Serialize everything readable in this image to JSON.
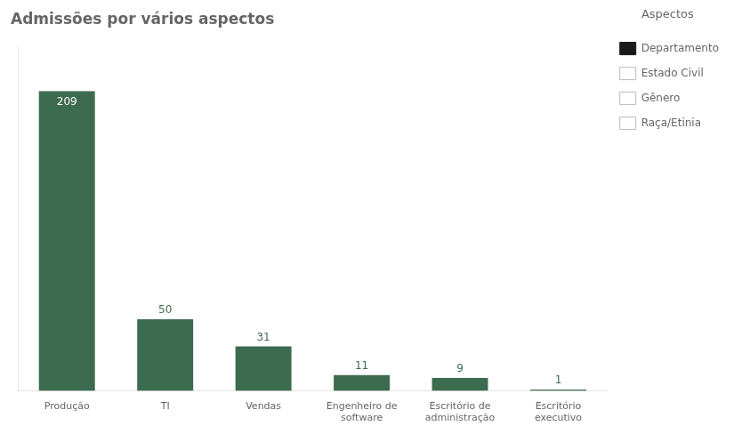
{
  "chart_data": {
    "type": "bar",
    "title": "Admissões por vários aspectos",
    "categories": [
      "Produção",
      "TI",
      "Vendas",
      "Engenheiro de\nsoftware",
      "Escritório de\nadministração",
      "Escritório\nexecutivo"
    ],
    "values": [
      209,
      50,
      31,
      11,
      9,
      1
    ],
    "color": "#3d6b4f",
    "ylim": [
      0,
      240
    ],
    "grid": false,
    "tick_labels": "x",
    "data_labels": true,
    "data_label_color": "#3d6b4f",
    "data_label_inside_color": "#ffffff",
    "legend": "upper right",
    "legend_title": "Aspectos",
    "legend_entries": [
      {
        "name": "Departamento",
        "color": "#1a1a1a",
        "edge_color": "#1a1a1a"
      },
      {
        "name": "Estado Civil",
        "color": "#ffffff",
        "edge_color": "#bbbbbb"
      },
      {
        "name": "Gênero",
        "color": "#ffffff",
        "edge_color": "#bbbbbb"
      },
      {
        "name": "Raça/Etinia",
        "color": "#ffffff",
        "edge_color": "#bbbbbb"
      }
    ]
  }
}
